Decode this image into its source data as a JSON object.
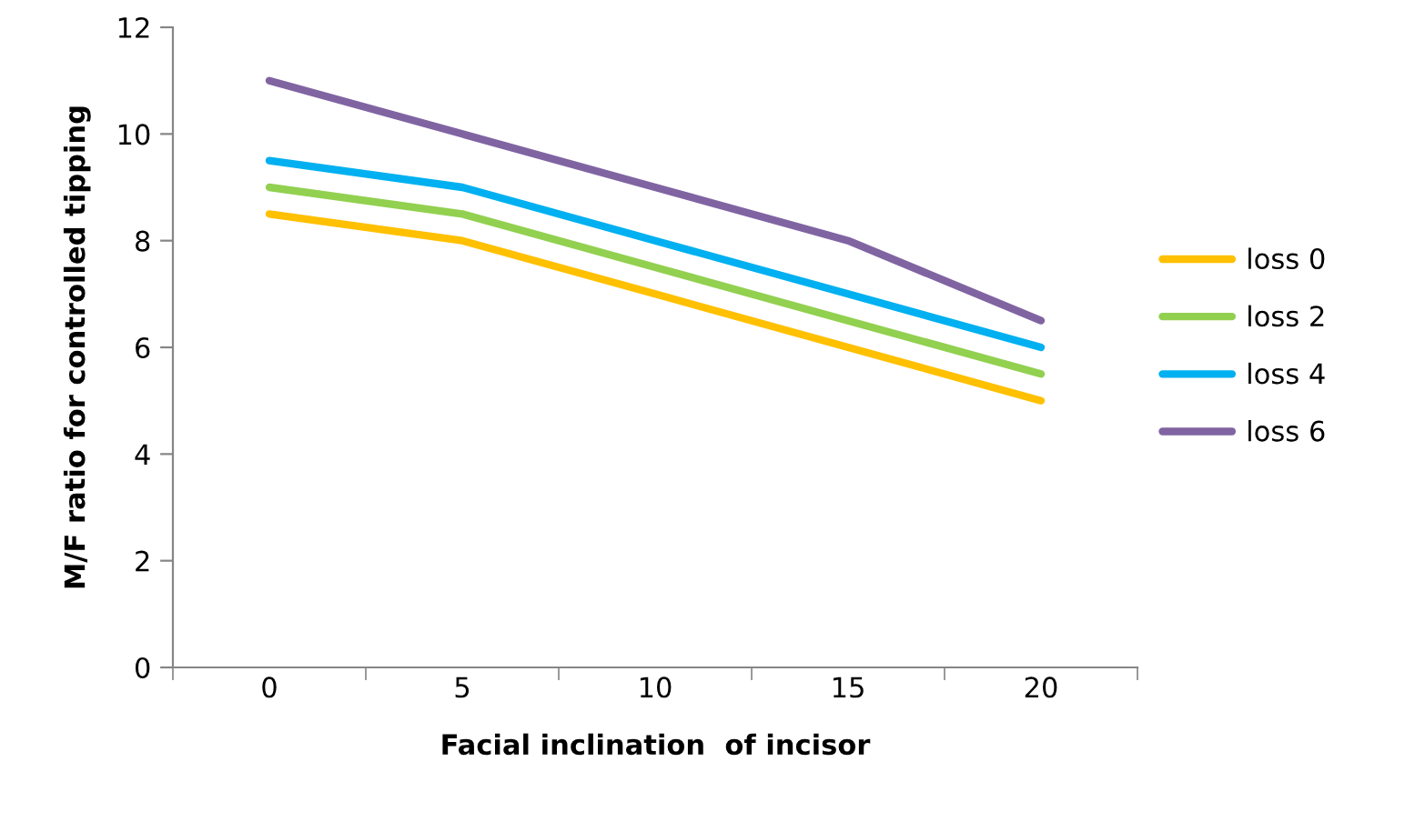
{
  "chart_data": {
    "type": "line",
    "xlabel": "Facial inclination  of incisor",
    "ylabel": "M/F ratio for controlled tipping",
    "categories": [
      "0",
      "5",
      "10",
      "15",
      "20"
    ],
    "series": [
      {
        "name": "loss 0",
        "color": "#ffc000",
        "values": [
          8.5,
          8,
          7,
          6,
          5
        ]
      },
      {
        "name": "loss 2",
        "color": "#92d050",
        "values": [
          9,
          8.5,
          7.5,
          6.5,
          5.5
        ]
      },
      {
        "name": "loss 4",
        "color": "#00b0f0",
        "values": [
          9.5,
          9,
          8,
          7,
          6
        ]
      },
      {
        "name": "loss 6",
        "color": "#8064a2",
        "values": [
          11,
          10,
          9,
          8,
          6.5
        ]
      }
    ],
    "ylim": [
      0,
      12
    ],
    "yticks": [
      0,
      2,
      4,
      6,
      8,
      10,
      12
    ],
    "grid": false,
    "legend": "right",
    "marker": "none",
    "line_style": "solid"
  }
}
